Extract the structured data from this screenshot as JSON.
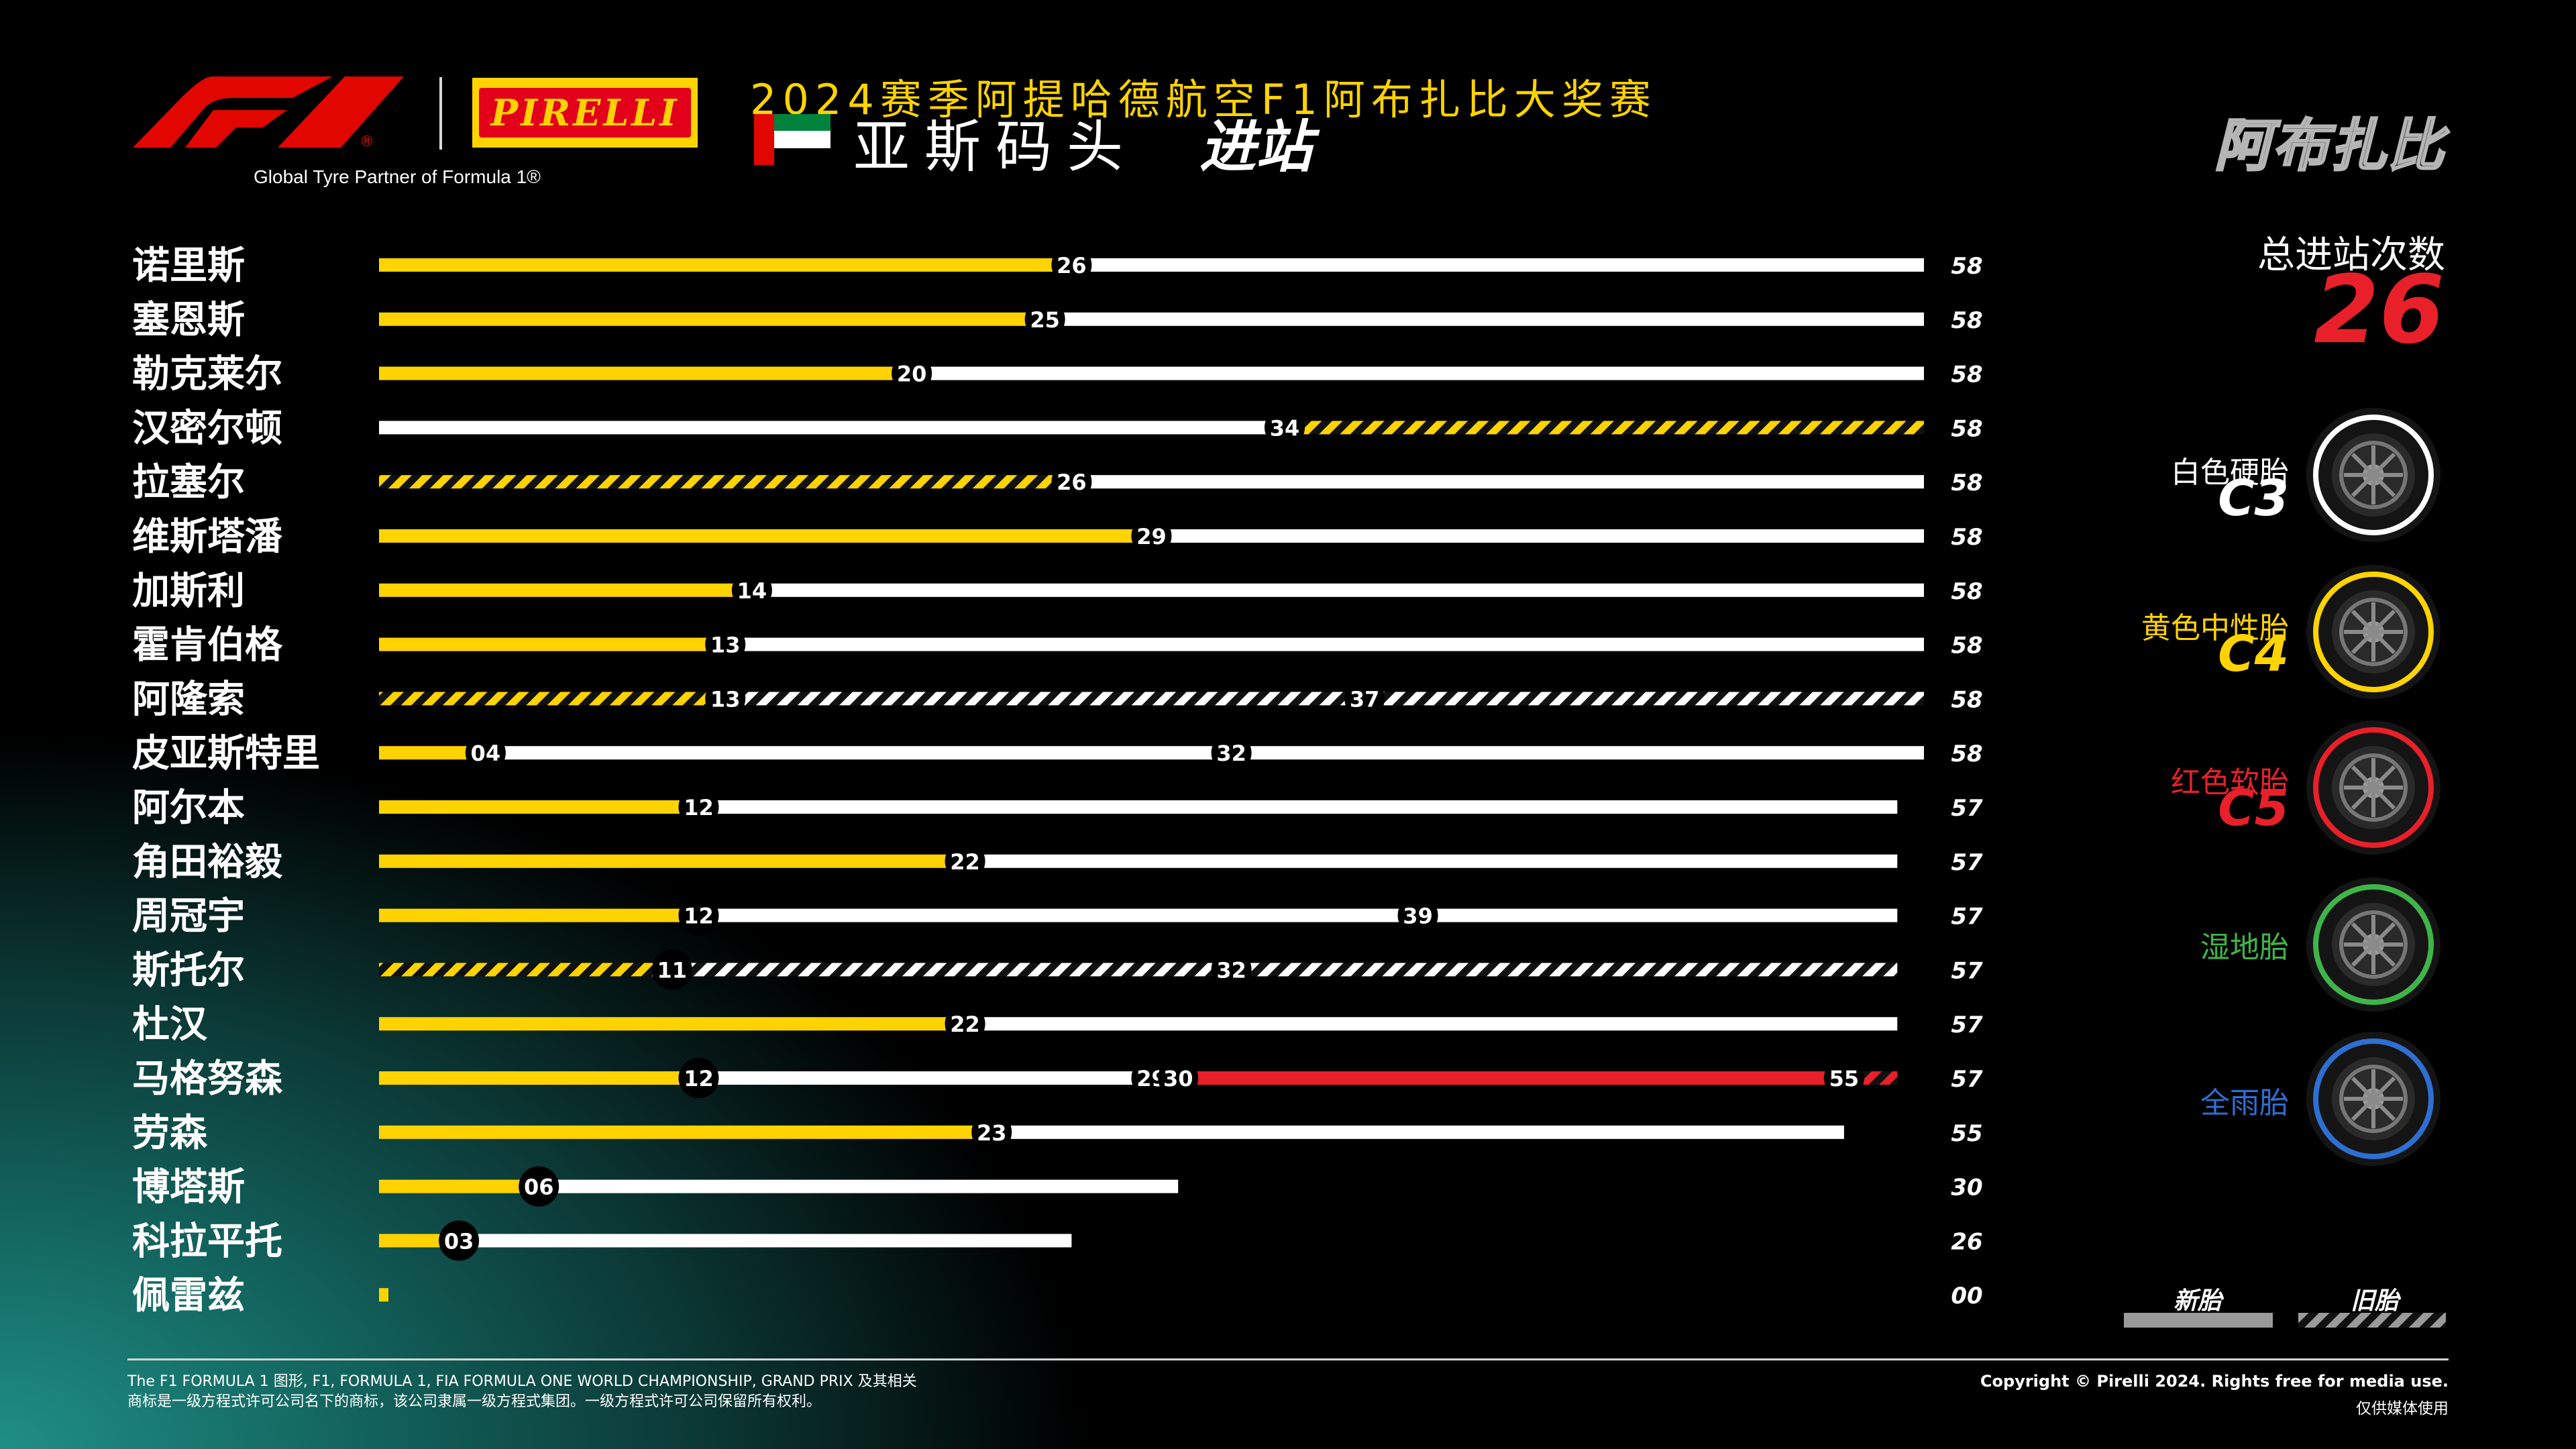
{
  "header": {
    "partner_text": "Global Tyre Partner of Formula 1®",
    "pirelli_wordmark": "PIRELLI",
    "gp_title": "2024赛季阿提哈德航空F1阿布扎比大奖赛",
    "circuit": "亚斯码头",
    "subtitle": "进站",
    "city": "阿布扎比"
  },
  "summary": {
    "label": "总进站次数",
    "value": "26"
  },
  "colors": {
    "hard": "#ffffff",
    "medium": "#ffd300",
    "soft": "#e8202a",
    "inter": "#3fb549",
    "wet": "#2e6fd1",
    "background": "#000000"
  },
  "tyres": [
    {
      "name": "白色硬胎",
      "code": "C3",
      "color": "#ffffff",
      "icon": "hard-tyre-icon"
    },
    {
      "name": "黄色中性胎",
      "code": "C4",
      "color": "#ffd300",
      "icon": "medium-tyre-icon"
    },
    {
      "name": "红色软胎",
      "code": "C5",
      "color": "#e8202a",
      "icon": "soft-tyre-icon"
    },
    {
      "name": "湿地胎",
      "code": "",
      "color": "#3fb549",
      "icon": "intermediate-tyre-icon"
    },
    {
      "name": "全雨胎",
      "code": "",
      "color": "#2e6fd1",
      "icon": "wet-tyre-icon"
    }
  ],
  "legend": {
    "new": "新胎",
    "used": "旧胎"
  },
  "footer": {
    "legal_line1": "The F1 FORMULA 1 图形, F1, FORMULA 1, FIA FORMULA ONE WORLD CHAMPIONSHIP, GRAND PRIX 及其相关",
    "legal_line2": "商标是一级方程式许可公司名下的商标，该公司隶属一级方程式集团。一级方程式许可公司保留所有权利。",
    "copyright": "Copyright © Pirelli 2024. Rights free for media use.",
    "copyright2": "仅供媒体使用"
  },
  "chart_data": {
    "type": "stint-bar",
    "title": "2024赛季阿提哈德航空F1阿布扎比大奖赛 亚斯码头 进站",
    "x_unit": "laps",
    "xlim": [
      0,
      58
    ],
    "drivers": [
      {
        "name": "诺里斯",
        "laps": "58",
        "stints": [
          {
            "compound": "medium",
            "used": false,
            "start": 0,
            "end": 26
          },
          {
            "compound": "hard",
            "used": false,
            "start": 26,
            "end": 58
          }
        ],
        "stops": [
          "26"
        ]
      },
      {
        "name": "塞恩斯",
        "laps": "58",
        "stints": [
          {
            "compound": "medium",
            "used": false,
            "start": 0,
            "end": 25
          },
          {
            "compound": "hard",
            "used": false,
            "start": 25,
            "end": 58
          }
        ],
        "stops": [
          "25"
        ]
      },
      {
        "name": "勒克莱尔",
        "laps": "58",
        "stints": [
          {
            "compound": "medium",
            "used": false,
            "start": 0,
            "end": 20
          },
          {
            "compound": "hard",
            "used": false,
            "start": 20,
            "end": 58
          }
        ],
        "stops": [
          "20"
        ]
      },
      {
        "name": "汉密尔顿",
        "laps": "58",
        "stints": [
          {
            "compound": "hard",
            "used": false,
            "start": 0,
            "end": 34
          },
          {
            "compound": "medium",
            "used": true,
            "start": 34,
            "end": 58
          }
        ],
        "stops": [
          "34"
        ]
      },
      {
        "name": "拉塞尔",
        "laps": "58",
        "stints": [
          {
            "compound": "medium",
            "used": true,
            "start": 0,
            "end": 26
          },
          {
            "compound": "hard",
            "used": false,
            "start": 26,
            "end": 58
          }
        ],
        "stops": [
          "26"
        ]
      },
      {
        "name": "维斯塔潘",
        "laps": "58",
        "stints": [
          {
            "compound": "medium",
            "used": false,
            "start": 0,
            "end": 29
          },
          {
            "compound": "hard",
            "used": false,
            "start": 29,
            "end": 58
          }
        ],
        "stops": [
          "29"
        ]
      },
      {
        "name": "加斯利",
        "laps": "58",
        "stints": [
          {
            "compound": "medium",
            "used": false,
            "start": 0,
            "end": 14
          },
          {
            "compound": "hard",
            "used": false,
            "start": 14,
            "end": 58
          }
        ],
        "stops": [
          "14"
        ]
      },
      {
        "name": "霍肯伯格",
        "laps": "58",
        "stints": [
          {
            "compound": "medium",
            "used": false,
            "start": 0,
            "end": 13
          },
          {
            "compound": "hard",
            "used": false,
            "start": 13,
            "end": 58
          }
        ],
        "stops": [
          "13"
        ]
      },
      {
        "name": "阿隆索",
        "laps": "58",
        "stints": [
          {
            "compound": "medium",
            "used": true,
            "start": 0,
            "end": 13
          },
          {
            "compound": "hard",
            "used": true,
            "start": 13,
            "end": 37
          },
          {
            "compound": "hard",
            "used": true,
            "start": 37,
            "end": 58
          }
        ],
        "stops": [
          "13",
          "37"
        ]
      },
      {
        "name": "皮亚斯特里",
        "laps": "58",
        "stints": [
          {
            "compound": "medium",
            "used": false,
            "start": 0,
            "end": 4
          },
          {
            "compound": "hard",
            "used": false,
            "start": 4,
            "end": 32
          },
          {
            "compound": "hard",
            "used": false,
            "start": 32,
            "end": 58
          }
        ],
        "stops": [
          "04",
          "32"
        ]
      },
      {
        "name": "阿尔本",
        "laps": "57",
        "stints": [
          {
            "compound": "medium",
            "used": false,
            "start": 0,
            "end": 12
          },
          {
            "compound": "hard",
            "used": false,
            "start": 12,
            "end": 57
          }
        ],
        "stops": [
          "12"
        ]
      },
      {
        "name": "角田裕毅",
        "laps": "57",
        "stints": [
          {
            "compound": "medium",
            "used": false,
            "start": 0,
            "end": 22
          },
          {
            "compound": "hard",
            "used": false,
            "start": 22,
            "end": 57
          }
        ],
        "stops": [
          "22"
        ]
      },
      {
        "name": "周冠宇",
        "laps": "57",
        "stints": [
          {
            "compound": "medium",
            "used": false,
            "start": 0,
            "end": 12
          },
          {
            "compound": "hard",
            "used": false,
            "start": 12,
            "end": 39
          },
          {
            "compound": "hard",
            "used": false,
            "start": 39,
            "end": 57
          }
        ],
        "stops": [
          "12",
          "39"
        ]
      },
      {
        "name": "斯托尔",
        "laps": "57",
        "stints": [
          {
            "compound": "medium",
            "used": true,
            "start": 0,
            "end": 11
          },
          {
            "compound": "hard",
            "used": true,
            "start": 11,
            "end": 32
          },
          {
            "compound": "hard",
            "used": true,
            "start": 32,
            "end": 57
          }
        ],
        "stops": [
          "11",
          "32"
        ]
      },
      {
        "name": "杜汉",
        "laps": "57",
        "stints": [
          {
            "compound": "medium",
            "used": false,
            "start": 0,
            "end": 22
          },
          {
            "compound": "hard",
            "used": false,
            "start": 22,
            "end": 57
          }
        ],
        "stops": [
          "22"
        ]
      },
      {
        "name": "马格努森",
        "laps": "57",
        "stints": [
          {
            "compound": "medium",
            "used": false,
            "start": 0,
            "end": 12
          },
          {
            "compound": "hard",
            "used": false,
            "start": 12,
            "end": 29
          },
          {
            "compound": "hard",
            "used": false,
            "start": 29,
            "end": 30
          },
          {
            "compound": "soft",
            "used": false,
            "start": 30,
            "end": 55
          },
          {
            "compound": "soft",
            "used": true,
            "start": 55,
            "end": 57
          }
        ],
        "stops": [
          "12",
          "29",
          "30",
          "55"
        ]
      },
      {
        "name": "劳森",
        "laps": "55",
        "stints": [
          {
            "compound": "medium",
            "used": false,
            "start": 0,
            "end": 23
          },
          {
            "compound": "hard",
            "used": false,
            "start": 23,
            "end": 55
          }
        ],
        "stops": [
          "23"
        ]
      },
      {
        "name": "博塔斯",
        "laps": "30",
        "stints": [
          {
            "compound": "medium",
            "used": false,
            "start": 0,
            "end": 6
          },
          {
            "compound": "hard",
            "used": false,
            "start": 6,
            "end": 30
          }
        ],
        "stops": [
          "06"
        ]
      },
      {
        "name": "科拉平托",
        "laps": "26",
        "stints": [
          {
            "compound": "medium",
            "used": false,
            "start": 0,
            "end": 3
          },
          {
            "compound": "hard",
            "used": false,
            "start": 3,
            "end": 26
          }
        ],
        "stops": [
          "03"
        ]
      },
      {
        "name": "佩雷兹",
        "laps": "00",
        "stints": [
          {
            "compound": "medium",
            "used": false,
            "start": 0,
            "end": 0.35
          }
        ],
        "stops": []
      }
    ]
  }
}
